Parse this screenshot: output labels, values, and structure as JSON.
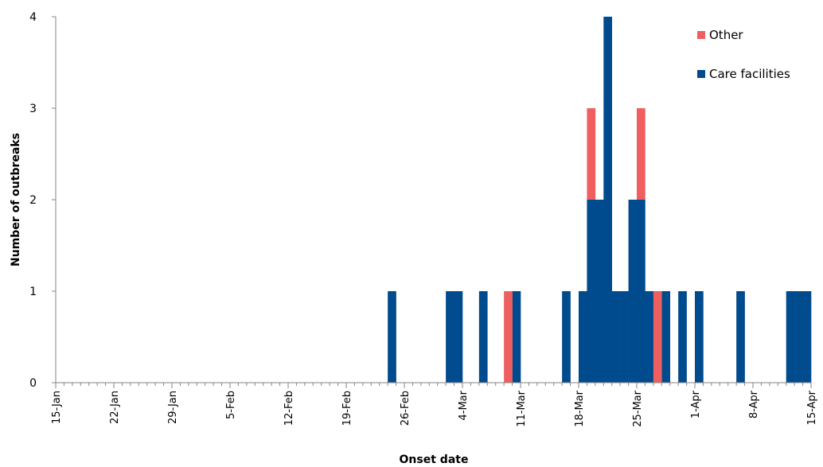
{
  "chart_data": {
    "type": "bar",
    "stacked": true,
    "xlabel": "Onset date",
    "ylabel": "Number of outbreaks",
    "ylim": [
      0,
      4
    ],
    "yticks": [
      0,
      1,
      2,
      3,
      4
    ],
    "xlim": [
      "2020-01-15",
      "2020-04-15"
    ],
    "x_tick_labels": [
      "15-Jan",
      "22-Jan",
      "29-Jan",
      "5-Feb",
      "12-Feb",
      "19-Feb",
      "26-Feb",
      "4-Mar",
      "11-Mar",
      "18-Mar",
      "25-Mar",
      "1-Apr",
      "8-Apr",
      "15-Apr"
    ],
    "x_tick_dates": [
      "2020-01-15",
      "2020-01-22",
      "2020-01-29",
      "2020-02-05",
      "2020-02-12",
      "2020-02-19",
      "2020-02-26",
      "2020-03-04",
      "2020-03-11",
      "2020-03-18",
      "2020-03-25",
      "2020-04-01",
      "2020-04-08",
      "2020-04-15"
    ],
    "grid": false,
    "legend_position": "top-right",
    "series": [
      {
        "name": "Care facilities",
        "color": "#004b8d",
        "x": [
          "2020-02-24",
          "2020-03-02",
          "2020-03-03",
          "2020-03-06",
          "2020-03-10",
          "2020-03-16",
          "2020-03-18",
          "2020-03-19",
          "2020-03-20",
          "2020-03-21",
          "2020-03-22",
          "2020-03-23",
          "2020-03-24",
          "2020-03-25",
          "2020-03-26",
          "2020-03-28",
          "2020-03-30",
          "2020-04-01",
          "2020-04-06",
          "2020-04-12",
          "2020-04-13",
          "2020-04-14"
        ],
        "values": [
          1,
          1,
          1,
          1,
          1,
          1,
          1,
          2,
          2,
          4,
          1,
          1,
          2,
          2,
          1,
          1,
          1,
          1,
          1,
          1,
          1,
          1
        ]
      },
      {
        "name": "Other",
        "color": "#ef5f5f",
        "x": [
          "2020-03-09",
          "2020-03-19",
          "2020-03-25",
          "2020-03-27"
        ],
        "values": [
          1,
          1,
          1,
          1
        ]
      }
    ]
  }
}
